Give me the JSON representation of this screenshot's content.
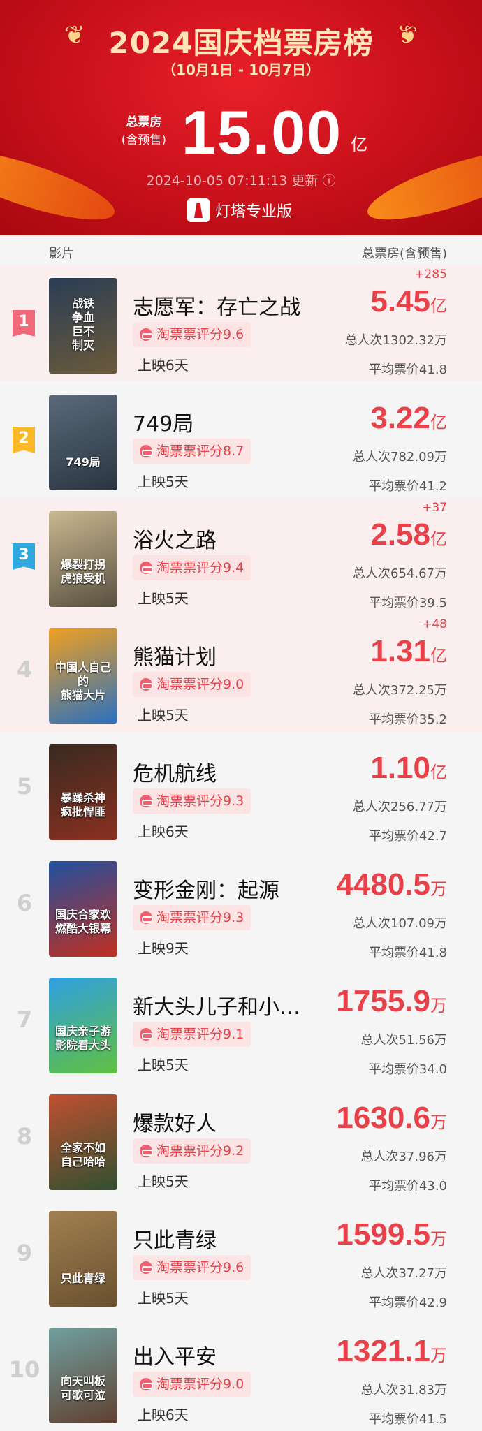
{
  "header": {
    "title": "2024国庆档票房榜",
    "date_range": "（10月1日 - 10月7日）",
    "total_label": "总票房",
    "total_sublabel": "(含预售)",
    "total_value": "15.00",
    "total_unit": "亿",
    "updated": "2024-10-05 07:11:13 更新",
    "info_icon": "info-icon",
    "brand": "灯塔专业版"
  },
  "columns": {
    "film": "影片",
    "box": "总票房(含预售)"
  },
  "colors": {
    "accent": "#e8414a",
    "rank1": "#f06a7a",
    "rank2": "#fbb829",
    "rank3": "#2fa8e0",
    "highlight_bg": "#fbeeee"
  },
  "movies": [
    {
      "rank": "1",
      "title": "志愿军：存亡之战",
      "delta": "+285",
      "value": "5.45",
      "unit": "亿",
      "rating": "淘票票评分9.6",
      "days": "上映6天",
      "people": "总人次1302.32万",
      "price": "平均票价41.8",
      "poster_text": "战铁\n争血\n巨不\n制灭",
      "highlight": true
    },
    {
      "rank": "2",
      "title": "749局",
      "delta": "",
      "value": "3.22",
      "unit": "亿",
      "rating": "淘票票评分8.7",
      "days": "上映5天",
      "people": "总人次782.09万",
      "price": "平均票价41.2",
      "poster_text": "749局",
      "highlight": false
    },
    {
      "rank": "3",
      "title": "浴火之路",
      "delta": "+37",
      "value": "2.58",
      "unit": "亿",
      "rating": "淘票票评分9.4",
      "days": "上映5天",
      "people": "总人次654.67万",
      "price": "平均票价39.5",
      "poster_text": "爆裂打拐\n虎狼受机",
      "highlight": true
    },
    {
      "rank": "4",
      "title": "熊猫计划",
      "delta": "+48",
      "value": "1.31",
      "unit": "亿",
      "rating": "淘票票评分9.0",
      "days": "上映5天",
      "people": "总人次372.25万",
      "price": "平均票价35.2",
      "poster_text": "中国人自己的\n熊猫大片",
      "highlight": true
    },
    {
      "rank": "5",
      "title": "危机航线",
      "delta": "",
      "value": "1.10",
      "unit": "亿",
      "rating": "淘票票评分9.3",
      "days": "上映6天",
      "people": "总人次256.77万",
      "price": "平均票价42.7",
      "poster_text": "暴躁杀神\n疯批悍匪",
      "highlight": false
    },
    {
      "rank": "6",
      "title": "变形金刚：起源",
      "delta": "",
      "value": "4480.5",
      "unit": "万",
      "rating": "淘票票评分9.3",
      "days": "上映9天",
      "people": "总人次107.09万",
      "price": "平均票价41.8",
      "poster_text": "国庆合家欢\n燃酷大银幕",
      "highlight": false
    },
    {
      "rank": "7",
      "title": "新大头儿子和小头爸爸",
      "delta": "",
      "value": "1755.9",
      "unit": "万",
      "rating": "淘票票评分9.1",
      "days": "上映5天",
      "people": "总人次51.56万",
      "price": "平均票价34.0",
      "poster_text": "国庆亲子游\n影院看大头",
      "highlight": false
    },
    {
      "rank": "8",
      "title": "爆款好人",
      "delta": "",
      "value": "1630.6",
      "unit": "万",
      "rating": "淘票票评分9.2",
      "days": "上映5天",
      "people": "总人次37.96万",
      "price": "平均票价43.0",
      "poster_text": "全家不如\n自己哈哈",
      "highlight": false
    },
    {
      "rank": "9",
      "title": "只此青绿",
      "delta": "",
      "value": "1599.5",
      "unit": "万",
      "rating": "淘票票评分9.6",
      "days": "上映5天",
      "people": "总人次37.27万",
      "price": "平均票价42.9",
      "poster_text": "只此青绿",
      "highlight": false
    },
    {
      "rank": "10",
      "title": "出入平安",
      "delta": "",
      "value": "1321.1",
      "unit": "万",
      "rating": "淘票票评分9.0",
      "days": "上映6天",
      "people": "总人次31.83万",
      "price": "平均票价41.5",
      "poster_text": "向天叫板\n可歌可泣",
      "highlight": false
    }
  ]
}
